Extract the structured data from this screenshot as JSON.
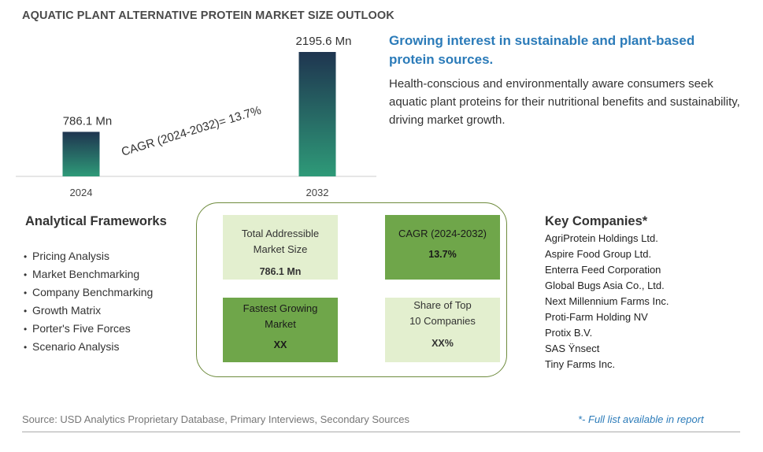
{
  "title": "AQUATIC PLANT ALTERNATIVE PROTEIN MARKET SIZE OUTLOOK",
  "chart_data": {
    "type": "bar",
    "categories": [
      "2024",
      "2032"
    ],
    "values": [
      786.1,
      2195.6
    ],
    "data_labels": [
      "786.1 Mn",
      "2195.6 Mn"
    ],
    "annotation": "CAGR (2024-2032)=  13.7%",
    "ylim": [
      0,
      2195.6
    ],
    "grid": false,
    "colors": {
      "bar_top": "#1f3550",
      "bar_bottom": "#2e9a78"
    }
  },
  "headline": "Growing interest in sustainable and plant-based protein sources.",
  "description": "Health-conscious and environmentally aware consumers seek aquatic plant proteins for their nutritional benefits and sustainability, driving market growth.",
  "frameworks": {
    "title": "Analytical Frameworks",
    "items": [
      "Pricing Analysis",
      "Market Benchmarking",
      "Company Benchmarking",
      "Growth Matrix",
      "Porter's Five Forces",
      "Scenario Analysis"
    ]
  },
  "metrics": [
    {
      "label": "Total Addressible Market Size",
      "value": "786.1 Mn"
    },
    {
      "label": "CAGR (2024-2032)",
      "value": "13.7%"
    },
    {
      "label": "Fastest Growing Market",
      "value": "XX"
    },
    {
      "label": "Share of Top 10 Companies",
      "value": "XX%"
    }
  ],
  "companies": {
    "title": "Key Companies*",
    "items": [
      "AgriProtein Holdings Ltd.",
      "Aspire Food Group Ltd.",
      "Enterra Feed Corporation",
      "Global Bugs Asia Co., Ltd.",
      "Next Millennium Farms Inc.",
      "Proti-Farm Holding NV",
      "Protix B.V.",
      "SAS Ÿnsect",
      "Tiny Farms Inc."
    ]
  },
  "source": "Source: USD Analytics Proprietary Database, Primary Interviews, Secondary Sources",
  "note": "*- Full list available in report"
}
